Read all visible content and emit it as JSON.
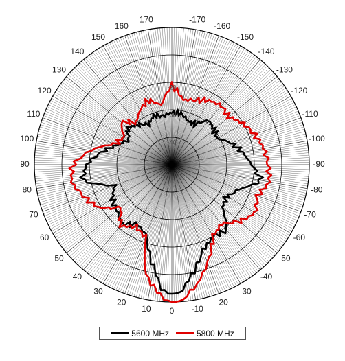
{
  "chart_data": {
    "type": "polar-line",
    "title": "",
    "angle_tick_labels": [
      "0",
      "10",
      "20",
      "30",
      "40",
      "50",
      "60",
      "70",
      "80",
      "90",
      "100",
      "110",
      "120",
      "130",
      "140",
      "150",
      "160",
      "170",
      "-170",
      "-160",
      "-150",
      "-140",
      "-130",
      "-120",
      "-110",
      "-100",
      "-90",
      "-80",
      "-70",
      "-60",
      "-50",
      "-40",
      "-30",
      "-20",
      "-10"
    ],
    "ring_labels": [
      "-40",
      "-30",
      "-20"
    ],
    "r_range": [
      -50,
      0
    ],
    "angle_unit": "deg",
    "grid": true,
    "legend_position": "bottom",
    "series": [
      {
        "name": "5600 MHz",
        "color": "#000000",
        "points": [
          {
            "angle": 0,
            "value": -3
          },
          {
            "angle": 5,
            "value": -5
          },
          {
            "angle": 10,
            "value": -12
          },
          {
            "angle": 20,
            "value": -23
          },
          {
            "angle": 30,
            "value": -25
          },
          {
            "angle": 40,
            "value": -22
          },
          {
            "angle": 50,
            "value": -24
          },
          {
            "angle": 60,
            "value": -25
          },
          {
            "angle": 70,
            "value": -28
          },
          {
            "angle": 80,
            "value": -17
          },
          {
            "angle": 90,
            "value": -19
          },
          {
            "angle": 100,
            "value": -24
          },
          {
            "angle": 110,
            "value": -29
          },
          {
            "angle": 120,
            "value": -32
          },
          {
            "angle": 130,
            "value": -29
          },
          {
            "angle": 140,
            "value": -31
          },
          {
            "angle": 150,
            "value": -33
          },
          {
            "angle": 160,
            "value": -31
          },
          {
            "angle": 170,
            "value": -32
          },
          {
            "angle": 180,
            "value": -31
          },
          {
            "angle": -170,
            "value": -31
          },
          {
            "angle": -160,
            "value": -33
          },
          {
            "angle": -150,
            "value": -33
          },
          {
            "angle": -140,
            "value": -29
          },
          {
            "angle": -130,
            "value": -30
          },
          {
            "angle": -120,
            "value": -31
          },
          {
            "angle": -110,
            "value": -27
          },
          {
            "angle": -100,
            "value": -24
          },
          {
            "angle": -90,
            "value": -21
          },
          {
            "angle": -80,
            "value": -17
          },
          {
            "angle": -70,
            "value": -24
          },
          {
            "angle": -60,
            "value": -27
          },
          {
            "angle": -50,
            "value": -26
          },
          {
            "angle": -40,
            "value": -19
          },
          {
            "angle": -30,
            "value": -20
          },
          {
            "angle": -20,
            "value": -17
          },
          {
            "angle": -10,
            "value": -9
          },
          {
            "angle": -5,
            "value": -4
          }
        ]
      },
      {
        "name": "5800 MHz",
        "color": "#e00000",
        "points": [
          {
            "angle": 0,
            "value": 0
          },
          {
            "angle": 5,
            "value": -2
          },
          {
            "angle": 10,
            "value": -6
          },
          {
            "angle": 15,
            "value": -12
          },
          {
            "angle": 20,
            "value": -22
          },
          {
            "angle": 30,
            "value": -24
          },
          {
            "angle": 40,
            "value": -21
          },
          {
            "angle": 50,
            "value": -26
          },
          {
            "angle": 60,
            "value": -19
          },
          {
            "angle": 70,
            "value": -16
          },
          {
            "angle": 80,
            "value": -13
          },
          {
            "angle": 90,
            "value": -14
          },
          {
            "angle": 100,
            "value": -20
          },
          {
            "angle": 110,
            "value": -28
          },
          {
            "angle": 120,
            "value": -30
          },
          {
            "angle": 130,
            "value": -26
          },
          {
            "angle": 140,
            "value": -30
          },
          {
            "angle": 150,
            "value": -27
          },
          {
            "angle": 160,
            "value": -25
          },
          {
            "angle": 170,
            "value": -28
          },
          {
            "angle": 180,
            "value": -21
          },
          {
            "angle": -170,
            "value": -26
          },
          {
            "angle": -160,
            "value": -25
          },
          {
            "angle": -150,
            "value": -23
          },
          {
            "angle": -140,
            "value": -22
          },
          {
            "angle": -130,
            "value": -23
          },
          {
            "angle": -120,
            "value": -20
          },
          {
            "angle": -110,
            "value": -18
          },
          {
            "angle": -100,
            "value": -16
          },
          {
            "angle": -90,
            "value": -15
          },
          {
            "angle": -80,
            "value": -14
          },
          {
            "angle": -70,
            "value": -17
          },
          {
            "angle": -60,
            "value": -15
          },
          {
            "angle": -50,
            "value": -18
          },
          {
            "angle": -40,
            "value": -22
          },
          {
            "angle": -30,
            "value": -20
          },
          {
            "angle": -20,
            "value": -12
          },
          {
            "angle": -10,
            "value": -4
          },
          {
            "angle": -5,
            "value": -1
          }
        ]
      }
    ]
  }
}
